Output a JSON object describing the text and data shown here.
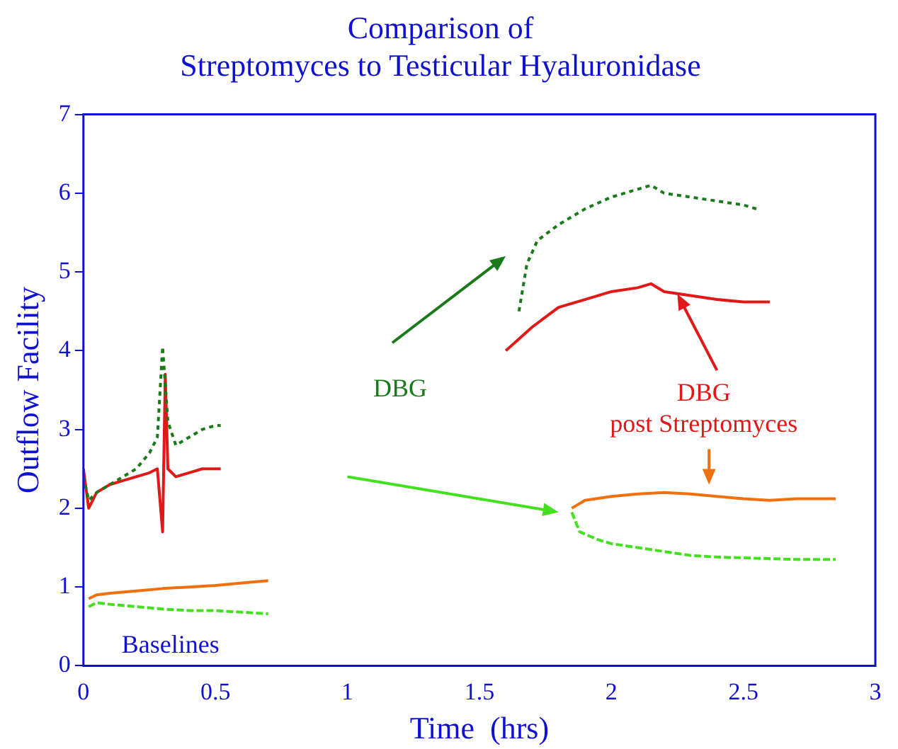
{
  "chart_data": {
    "type": "line",
    "title": "Comparison of\nStreptomyces to Testicular Hyaluronidase",
    "xlabel": "Time  (hrs)",
    "ylabel": "Outflow Facility",
    "xlim": [
      0,
      3
    ],
    "xticks": [
      0,
      0.5,
      1,
      1.5,
      2,
      2.5,
      3
    ],
    "ylim": [
      0,
      7
    ],
    "yticks": [
      0,
      1,
      2,
      3,
      4,
      5,
      6,
      7
    ],
    "grid": false,
    "legend": false,
    "marker": "none",
    "series": [
      {
        "color": "#1a7a1a",
        "line_style": "dotted",
        "x": [
          0,
          0.02,
          0.05,
          0.1,
          0.15,
          0.2,
          0.25,
          0.28,
          0.3,
          0.32,
          0.35,
          0.4,
          0.45,
          0.5,
          0.52,
          null,
          1.65,
          1.68,
          1.72,
          1.8,
          1.9,
          2.0,
          2.1,
          2.15,
          2.2,
          2.3,
          2.4,
          2.5,
          2.55
        ],
        "values": [
          2.4,
          2.1,
          2.2,
          2.3,
          2.4,
          2.5,
          2.7,
          2.9,
          4.05,
          3.1,
          2.8,
          2.9,
          3.0,
          3.05,
          3.05,
          null,
          4.5,
          5.1,
          5.4,
          5.6,
          5.8,
          5.95,
          6.05,
          6.1,
          6.0,
          5.95,
          5.9,
          5.85,
          5.8
        ]
      },
      {
        "color": "#e01818",
        "line_style": "solid",
        "x": [
          0,
          0.02,
          0.05,
          0.1,
          0.15,
          0.2,
          0.25,
          0.28,
          0.3,
          0.31,
          0.32,
          0.35,
          0.4,
          0.45,
          0.5,
          0.52,
          null,
          1.6,
          1.65,
          1.7,
          1.8,
          1.9,
          2.0,
          2.1,
          2.15,
          2.2,
          2.3,
          2.4,
          2.5,
          2.6
        ],
        "values": [
          2.5,
          2.0,
          2.2,
          2.3,
          2.35,
          2.4,
          2.45,
          2.5,
          1.7,
          3.7,
          2.5,
          2.4,
          2.45,
          2.5,
          2.5,
          2.5,
          null,
          4.0,
          4.15,
          4.3,
          4.55,
          4.65,
          4.75,
          4.8,
          4.85,
          4.75,
          4.7,
          4.65,
          4.62,
          4.62
        ]
      },
      {
        "color": "#f07010",
        "line_style": "solid",
        "x": [
          0.02,
          0.05,
          0.1,
          0.2,
          0.3,
          0.4,
          0.5,
          0.6,
          0.7,
          null,
          1.85,
          1.9,
          2.0,
          2.1,
          2.2,
          2.3,
          2.4,
          2.5,
          2.6,
          2.7,
          2.85
        ],
        "values": [
          0.85,
          0.9,
          0.92,
          0.95,
          0.98,
          1.0,
          1.02,
          1.05,
          1.08,
          null,
          2.0,
          2.1,
          2.15,
          2.18,
          2.2,
          2.18,
          2.15,
          2.12,
          2.1,
          2.12,
          2.12
        ]
      },
      {
        "color": "#44e020",
        "line_style": "dashed",
        "x": [
          0.02,
          0.05,
          0.1,
          0.2,
          0.3,
          0.4,
          0.5,
          0.6,
          0.7,
          null,
          1.85,
          1.88,
          1.95,
          2.0,
          2.1,
          2.2,
          2.3,
          2.4,
          2.5,
          2.6,
          2.7,
          2.85
        ],
        "values": [
          0.75,
          0.8,
          0.78,
          0.75,
          0.72,
          0.7,
          0.7,
          0.68,
          0.66,
          null,
          1.95,
          1.7,
          1.6,
          1.55,
          1.5,
          1.45,
          1.4,
          1.38,
          1.37,
          1.36,
          1.35,
          1.35
        ]
      }
    ],
    "annotations": [
      "DBG",
      {
        "text": "DBG\npost Streptomyces",
        "x": 2.25,
        "y": 4.72
      },
      "Baselines"
    ]
  }
}
